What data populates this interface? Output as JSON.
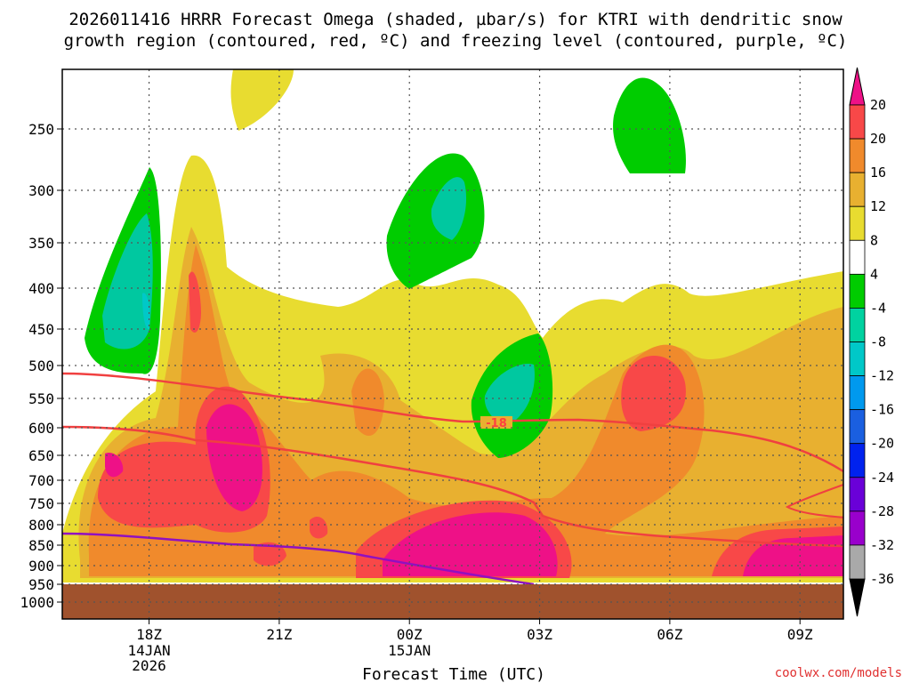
{
  "chart_data": {
    "type": "heatmap",
    "title_line1": "2026011416 HRRR Forecast Omega (shaded, µbar/s) for KTRI with dendritic snow",
    "title_line2": "growth region (contoured, red, ºC) and freezing level (contoured, purple, ºC)",
    "xlabel": "Forecast Time (UTC)",
    "credit": "coolwx.com/models",
    "x_range_hours": [
      0,
      18
    ],
    "x_ticks": [
      {
        "hour": 2,
        "label": "18Z",
        "sub1": "14JAN",
        "sub2": "2026"
      },
      {
        "hour": 5,
        "label": "21Z",
        "sub1": "",
        "sub2": ""
      },
      {
        "hour": 8,
        "label": "00Z",
        "sub1": "15JAN",
        "sub2": ""
      },
      {
        "hour": 11,
        "label": "03Z",
        "sub1": "",
        "sub2": ""
      },
      {
        "hour": 14,
        "label": "06Z",
        "sub1": "",
        "sub2": ""
      },
      {
        "hour": 17,
        "label": "09Z",
        "sub1": "",
        "sub2": ""
      }
    ],
    "y_ticks": [
      {
        "p": 250,
        "label": "250"
      },
      {
        "p": 300,
        "label": "300"
      },
      {
        "p": 350,
        "label": "350"
      },
      {
        "p": 400,
        "label": "400"
      },
      {
        "p": 450,
        "label": "450"
      },
      {
        "p": 500,
        "label": "500"
      },
      {
        "p": 550,
        "label": "550"
      },
      {
        "p": 600,
        "label": "600"
      },
      {
        "p": 650,
        "label": "650"
      },
      {
        "p": 700,
        "label": "700"
      },
      {
        "p": 750,
        "label": "750"
      },
      {
        "p": 800,
        "label": "800"
      },
      {
        "p": 850,
        "label": "850"
      },
      {
        "p": 900,
        "label": "900"
      },
      {
        "p": 950,
        "label": "950"
      },
      {
        "p": 1000,
        "label": "1000"
      }
    ],
    "ground_top_p": 950,
    "ground_color": "#a0522d",
    "colorbar": [
      {
        "lo": "-36",
        "color": "#a9a9a9"
      },
      {
        "lo": "-32",
        "color": "#9900cc"
      },
      {
        "lo": "-28",
        "color": "#6a00d8"
      },
      {
        "lo": "-24",
        "color": "#0022ee"
      },
      {
        "lo": "-20",
        "color": "#1a5fe0"
      },
      {
        "lo": "-16",
        "color": "#0099ee"
      },
      {
        "lo": "-12",
        "color": "#00c8c8"
      },
      {
        "lo": "-8",
        "color": "#00d2a0"
      },
      {
        "lo": "-4",
        "color": "#00cc00"
      },
      {
        "lo": "4",
        "color": "#ffffff"
      },
      {
        "lo": "8",
        "color": "#e8dc30"
      },
      {
        "lo": "12",
        "color": "#e8b030"
      },
      {
        "lo": "16",
        "color": "#f08a2c"
      },
      {
        "lo": "20",
        "color": "#f84848"
      }
    ],
    "colorbar_top_label": "20",
    "colorbar_over_color": "#ee1187",
    "colorbar_under_color": "#000000",
    "contour_label": "-18",
    "contour_label_color": "#ff4040",
    "color_pink": "#ee1187",
    "color_red": "#f84848",
    "color_orange": "#f08a2c",
    "color_lightorange": "#e8b030",
    "color_yellow": "#e8dc30",
    "color_green": "#00cc00",
    "color_teal": "#00c8a0",
    "color_cyan": "#00c8c8",
    "color_dgz": "#f04040",
    "color_freezing": "#9010c0"
  }
}
